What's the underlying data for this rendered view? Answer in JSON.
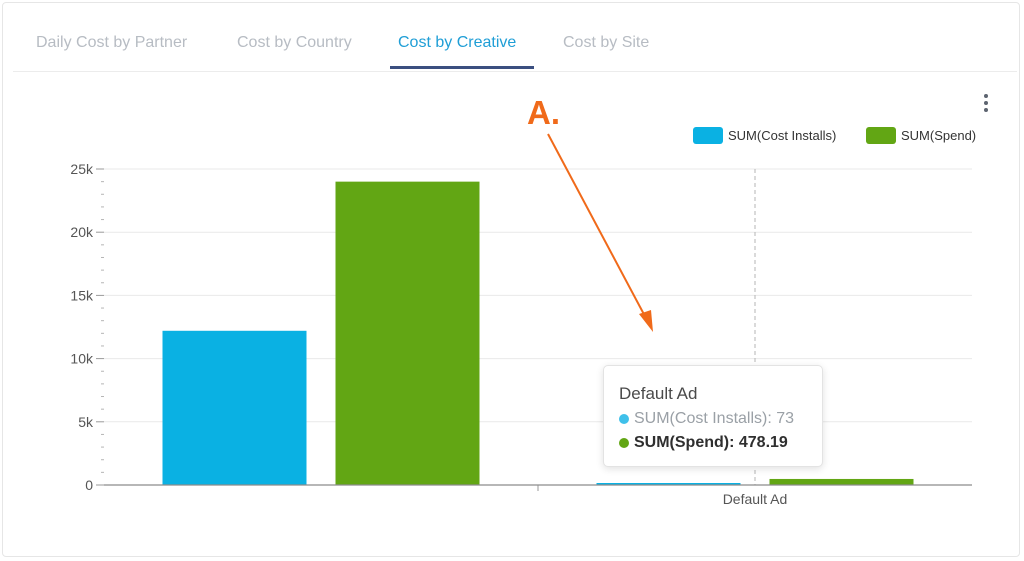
{
  "tabs": [
    {
      "label": "Daily Cost by Partner",
      "active": false
    },
    {
      "label": "Cost by Country",
      "active": false
    },
    {
      "label": "Cost by Creative",
      "active": true
    },
    {
      "label": "Cost by Site",
      "active": false
    }
  ],
  "annotation": {
    "label": "A.",
    "color": "#f06a1a"
  },
  "colors": {
    "installs": "#0ab1e3",
    "spend": "#62a614",
    "active_tab": "#1f9ed6",
    "tab_underline": "#3b4f80"
  },
  "legend": [
    {
      "label": "SUM(Cost Installs)",
      "color": "#0ab1e3"
    },
    {
      "label": "SUM(Spend)",
      "color": "#62a614"
    }
  ],
  "tooltip": {
    "title": "Default Ad",
    "rows": [
      {
        "label": "SUM(Cost Installs)",
        "value": "73",
        "text": "SUM(Cost Installs): 73"
      },
      {
        "label": "SUM(Spend)",
        "value": "478.19",
        "text": "SUM(Spend): 478.19"
      }
    ]
  },
  "chart_data": {
    "type": "bar",
    "categories": [
      "",
      "Default Ad"
    ],
    "series": [
      {
        "name": "SUM(Cost Installs)",
        "values": [
          12200,
          73
        ],
        "color": "#0ab1e3"
      },
      {
        "name": "SUM(Spend)",
        "values": [
          24000,
          478.19
        ],
        "color": "#62a614"
      }
    ],
    "yticks": [
      0,
      5000,
      10000,
      15000,
      20000,
      25000
    ],
    "ytick_labels": [
      "0",
      "5k",
      "10k",
      "15k",
      "20k",
      "25k"
    ],
    "ylim": [
      0,
      25000
    ],
    "grid": true,
    "legend_position": "top-right"
  }
}
